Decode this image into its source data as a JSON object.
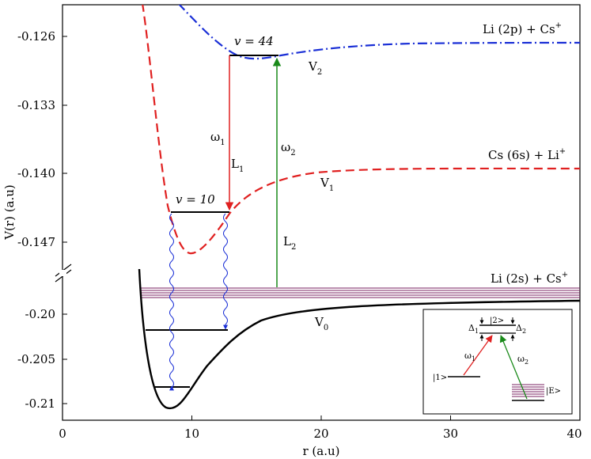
{
  "axes": {
    "xlabel": "r (a.u)",
    "ylabel": "V(r) (a.u)",
    "x_ticks": [
      "0",
      "10",
      "20",
      "30",
      "40"
    ],
    "y_ticks_upper": [
      "-0.126",
      "-0.133",
      "-0.140",
      "-0.147"
    ],
    "y_ticks_lower": [
      "-0.20",
      "-0.205",
      "-0.21"
    ],
    "xlim": [
      0,
      40
    ],
    "ylim_upper": [
      -0.1505,
      -0.1245
    ],
    "ylim_lower": [
      -0.2115,
      -0.1945
    ],
    "axis_break": true
  },
  "curves": {
    "V2": {
      "main": "V",
      "sub": "2",
      "color": "#1a2fd6",
      "style": "dash-dot"
    },
    "V1": {
      "main": "V",
      "sub": "1",
      "color": "#e02020",
      "style": "dashed"
    },
    "V0": {
      "main": "V",
      "sub": "0",
      "color": "#000000",
      "style": "solid"
    }
  },
  "asymptotes": {
    "top": {
      "main": "Li (2p) + Cs",
      "sup": "+"
    },
    "mid": {
      "main": "Cs (6s) + Li",
      "sup": "+"
    },
    "low": {
      "main": "Li (2s) + Cs",
      "sup": "+"
    }
  },
  "levels": {
    "v44": {
      "prefix": "v",
      "rest": " = 44"
    },
    "v10": {
      "prefix": "v",
      "rest": " = 10"
    }
  },
  "transitions": {
    "omega1": {
      "main": "ω",
      "sub": "1",
      "color": "#e02020"
    },
    "L1": {
      "main": "L",
      "sub": "1"
    },
    "omega2": {
      "main": "ω",
      "sub": "2",
      "color": "#1a8a1a"
    },
    "L2": {
      "main": "L",
      "sub": "2"
    }
  },
  "inset": {
    "state1": "|1>",
    "state2": "|2>",
    "stateE": "|E>",
    "delta1": {
      "main": "Δ",
      "sub": "1"
    },
    "delta2": {
      "main": "Δ",
      "sub": "2"
    },
    "omega1": {
      "main": "ω",
      "sub": "1"
    },
    "omega2": {
      "main": "ω",
      "sub": "2"
    }
  },
  "colors": {
    "continuum": "#7a2060",
    "decay": "#1a2fd6",
    "red": "#e02020",
    "green": "#1a8a1a",
    "blue": "#1a2fd6"
  }
}
